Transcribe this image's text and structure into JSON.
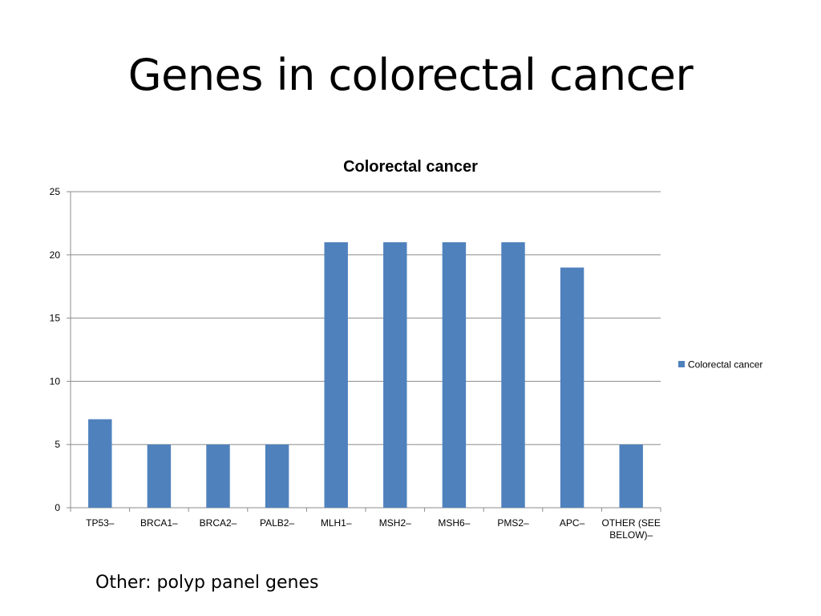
{
  "slide": {
    "title": "Genes in colorectal cancer",
    "footnote": "Other: polyp panel genes"
  },
  "colors": {
    "bar": "#4f81bd",
    "grid": "#8c8c8c",
    "axis": "#8c8c8c",
    "text": "#000000"
  },
  "chart_data": {
    "type": "bar",
    "title": "Colorectal cancer",
    "xlabel": "",
    "ylabel": "",
    "ylim": [
      0,
      25
    ],
    "yticks": [
      0,
      5,
      10,
      15,
      20,
      25
    ],
    "grid": true,
    "legend_position": "right",
    "categories": [
      "TP53–",
      "BRCA1–",
      "BRCA2–",
      "PALB2–",
      "MLH1–",
      "MSH2–",
      "MSH6–",
      "PMS2–",
      "APC–",
      "OTHER (SEE BELOW)–"
    ],
    "category_lines": [
      [
        "TP53–"
      ],
      [
        "BRCA1–"
      ],
      [
        "BRCA2–"
      ],
      [
        "PALB2–"
      ],
      [
        "MLH1–"
      ],
      [
        "MSH2–"
      ],
      [
        "MSH6–"
      ],
      [
        "PMS2–"
      ],
      [
        "APC–"
      ],
      [
        "OTHER (SEE",
        "BELOW)–"
      ]
    ],
    "series": [
      {
        "name": "Colorectal cancer",
        "values": [
          7,
          5,
          5,
          5,
          21,
          21,
          21,
          21,
          19,
          5
        ]
      }
    ]
  }
}
